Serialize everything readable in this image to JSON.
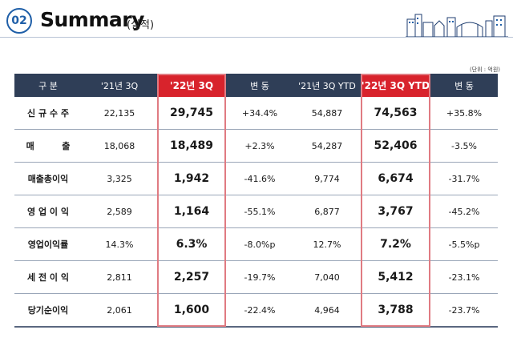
{
  "header": {
    "section_number": "02",
    "title": "Summary",
    "subtitle": "(실적)",
    "unit_note": "(단위 : 억원)"
  },
  "table": {
    "columns": [
      "구   분",
      "'21년 3Q",
      "'22년 3Q",
      "변   동",
      "'21년 3Q YTD",
      "'22년 3Q YTD",
      "변   동"
    ],
    "rows": [
      {
        "label": "신 규 수 주",
        "q21": "22,135",
        "q22": "29,745",
        "change_q": "+34.4%",
        "ytd21": "54,887",
        "ytd22": "74,563",
        "change_ytd": "+35.8%"
      },
      {
        "label": "매         출",
        "q21": "18,068",
        "q22": "18,489",
        "change_q": "+2.3%",
        "ytd21": "54,287",
        "ytd22": "52,406",
        "change_ytd": "-3.5%"
      },
      {
        "label": "매출총이익",
        "q21": "3,325",
        "q22": "1,942",
        "change_q": "-41.6%",
        "ytd21": "9,774",
        "ytd22": "6,674",
        "change_ytd": "-31.7%"
      },
      {
        "label": "영 업 이 익",
        "q21": "2,589",
        "q22": "1,164",
        "change_q": "-55.1%",
        "ytd21": "6,877",
        "ytd22": "3,767",
        "change_ytd": "-45.2%"
      },
      {
        "label": "영업이익률",
        "q21": "14.3%",
        "q22": "6.3%",
        "change_q": "-8.0%p",
        "ytd21": "12.7%",
        "ytd22": "7.2%",
        "change_ytd": "-5.5%p"
      },
      {
        "label": "세 전 이 익",
        "q21": "2,811",
        "q22": "2,257",
        "change_q": "-19.7%",
        "ytd21": "7,040",
        "ytd22": "5,412",
        "change_ytd": "-23.1%"
      },
      {
        "label": "당기순이익",
        "q21": "2,061",
        "q22": "1,600",
        "change_q": "-22.4%",
        "ytd21": "4,964",
        "ytd22": "3,788",
        "change_ytd": "-23.7%"
      }
    ]
  },
  "colors": {
    "header_bg": "#2f3e57",
    "highlight_header": "#d8232c",
    "highlight_border": "#e07b82",
    "accent_blue": "#1f5fa8"
  },
  "icons": {
    "section_badge": "circle-number-badge",
    "decoration": "city-skyline-icon"
  }
}
